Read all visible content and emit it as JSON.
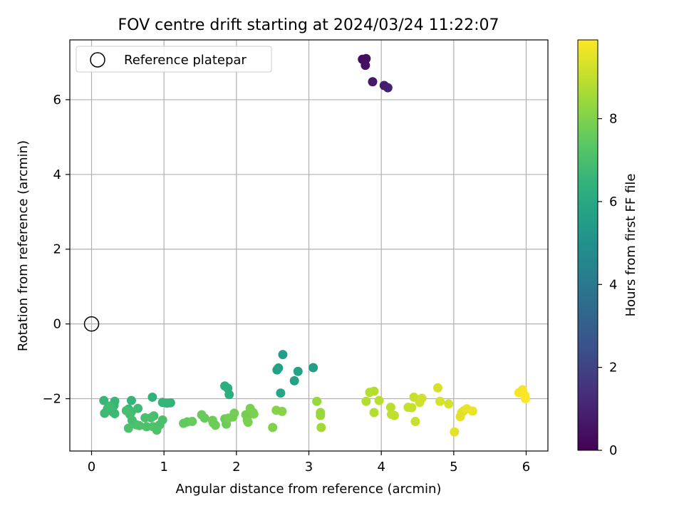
{
  "chart_data": {
    "type": "scatter",
    "title": "FOV centre drift starting at 2024/03/24 11:22:07",
    "xlabel": "Angular distance from reference (arcmin)",
    "ylabel": "Rotation from reference (arcmin)",
    "xlim": [
      -0.3,
      6.3
    ],
    "ylim": [
      -3.4,
      7.6
    ],
    "x_ticks": [
      0,
      1,
      2,
      3,
      4,
      5,
      6
    ],
    "y_ticks": [
      -2,
      0,
      2,
      4,
      6
    ],
    "grid": true,
    "legend": {
      "placement": "top-left",
      "label": "Reference platepar"
    },
    "reference_point": {
      "x": 0,
      "y": 0
    },
    "colorbar": {
      "label": "Hours from first FF file",
      "colormap": "viridis",
      "range": [
        0,
        9.9
      ],
      "ticks": [
        0,
        2,
        4,
        6,
        8
      ]
    },
    "points": [
      {
        "x": 3.74,
        "y": 7.08,
        "t": 0.3
      },
      {
        "x": 3.79,
        "y": 7.1,
        "t": 0.4
      },
      {
        "x": 3.78,
        "y": 6.92,
        "t": 0.5
      },
      {
        "x": 3.88,
        "y": 6.48,
        "t": 0.7
      },
      {
        "x": 4.04,
        "y": 6.38,
        "t": 0.8
      },
      {
        "x": 4.09,
        "y": 6.32,
        "t": 0.9
      },
      {
        "x": 2.64,
        "y": -0.82,
        "t": 5.6
      },
      {
        "x": 3.06,
        "y": -1.17,
        "t": 5.6
      },
      {
        "x": 2.58,
        "y": -1.18,
        "t": 5.6
      },
      {
        "x": 2.56,
        "y": -1.23,
        "t": 5.7
      },
      {
        "x": 2.85,
        "y": -1.27,
        "t": 5.7
      },
      {
        "x": 2.8,
        "y": -1.52,
        "t": 5.7
      },
      {
        "x": 2.61,
        "y": -1.85,
        "t": 5.9
      },
      {
        "x": 1.84,
        "y": -1.66,
        "t": 6.3
      },
      {
        "x": 1.88,
        "y": -1.72,
        "t": 6.3
      },
      {
        "x": 1.9,
        "y": -1.89,
        "t": 6.3
      },
      {
        "x": 0.84,
        "y": -1.96,
        "t": 6.4
      },
      {
        "x": 0.55,
        "y": -2.05,
        "t": 6.5
      },
      {
        "x": 0.98,
        "y": -2.1,
        "t": 6.5
      },
      {
        "x": 1.04,
        "y": -2.12,
        "t": 6.5
      },
      {
        "x": 1.09,
        "y": -2.11,
        "t": 6.5
      },
      {
        "x": 0.51,
        "y": -2.28,
        "t": 6.6
      },
      {
        "x": 0.17,
        "y": -2.05,
        "t": 6.6
      },
      {
        "x": 0.32,
        "y": -2.07,
        "t": 6.6
      },
      {
        "x": 0.31,
        "y": -2.18,
        "t": 6.6
      },
      {
        "x": 0.29,
        "y": -2.35,
        "t": 6.7
      },
      {
        "x": 0.32,
        "y": -2.4,
        "t": 6.7
      },
      {
        "x": 0.22,
        "y": -2.27,
        "t": 6.7
      },
      {
        "x": 0.18,
        "y": -2.39,
        "t": 6.7
      },
      {
        "x": 0.25,
        "y": -2.2,
        "t": 6.8
      },
      {
        "x": 0.55,
        "y": -2.35,
        "t": 6.8
      },
      {
        "x": 0.64,
        "y": -2.26,
        "t": 6.8
      },
      {
        "x": 0.53,
        "y": -2.42,
        "t": 6.9
      },
      {
        "x": 0.56,
        "y": -2.58,
        "t": 6.9
      },
      {
        "x": 0.48,
        "y": -2.32,
        "t": 6.9
      },
      {
        "x": 0.86,
        "y": -2.46,
        "t": 6.9
      },
      {
        "x": 0.82,
        "y": -2.51,
        "t": 7.0
      },
      {
        "x": 0.74,
        "y": -2.51,
        "t": 7.0
      },
      {
        "x": 0.98,
        "y": -2.57,
        "t": 7.0
      },
      {
        "x": 0.94,
        "y": -2.7,
        "t": 7.0
      },
      {
        "x": 0.62,
        "y": -2.7,
        "t": 7.0
      },
      {
        "x": 0.66,
        "y": -2.72,
        "t": 7.1
      },
      {
        "x": 0.76,
        "y": -2.75,
        "t": 7.1
      },
      {
        "x": 0.85,
        "y": -2.75,
        "t": 7.1
      },
      {
        "x": 0.9,
        "y": -2.84,
        "t": 7.1
      },
      {
        "x": 0.9,
        "y": -2.79,
        "t": 7.1
      },
      {
        "x": 0.51,
        "y": -2.79,
        "t": 7.1
      },
      {
        "x": 1.27,
        "y": -2.66,
        "t": 7.5
      },
      {
        "x": 1.32,
        "y": -2.62,
        "t": 7.5
      },
      {
        "x": 1.39,
        "y": -2.61,
        "t": 7.6
      },
      {
        "x": 1.52,
        "y": -2.43,
        "t": 7.6
      },
      {
        "x": 1.56,
        "y": -2.52,
        "t": 7.6
      },
      {
        "x": 1.67,
        "y": -2.58,
        "t": 7.7
      },
      {
        "x": 1.71,
        "y": -2.71,
        "t": 7.7
      },
      {
        "x": 1.68,
        "y": -2.65,
        "t": 7.7
      },
      {
        "x": 1.84,
        "y": -2.54,
        "t": 7.7
      },
      {
        "x": 1.86,
        "y": -2.68,
        "t": 7.7
      },
      {
        "x": 1.89,
        "y": -2.52,
        "t": 7.8
      },
      {
        "x": 1.95,
        "y": -2.49,
        "t": 7.8
      },
      {
        "x": 1.97,
        "y": -2.39,
        "t": 7.8
      },
      {
        "x": 2.13,
        "y": -2.43,
        "t": 7.8
      },
      {
        "x": 2.15,
        "y": -2.57,
        "t": 7.8
      },
      {
        "x": 2.16,
        "y": -2.63,
        "t": 7.9
      },
      {
        "x": 2.19,
        "y": -2.26,
        "t": 7.9
      },
      {
        "x": 2.23,
        "y": -2.37,
        "t": 7.9
      },
      {
        "x": 2.24,
        "y": -2.41,
        "t": 7.9
      },
      {
        "x": 2.5,
        "y": -2.77,
        "t": 8.0
      },
      {
        "x": 2.55,
        "y": -2.31,
        "t": 8.1
      },
      {
        "x": 2.63,
        "y": -2.34,
        "t": 8.1
      },
      {
        "x": 3.11,
        "y": -2.07,
        "t": 8.4
      },
      {
        "x": 3.16,
        "y": -2.37,
        "t": 8.4
      },
      {
        "x": 3.16,
        "y": -2.45,
        "t": 8.4
      },
      {
        "x": 3.17,
        "y": -2.77,
        "t": 8.5
      },
      {
        "x": 3.79,
        "y": -2.07,
        "t": 8.8
      },
      {
        "x": 3.84,
        "y": -1.83,
        "t": 8.8
      },
      {
        "x": 3.9,
        "y": -1.8,
        "t": 8.8
      },
      {
        "x": 3.9,
        "y": -2.37,
        "t": 8.8
      },
      {
        "x": 3.97,
        "y": -2.05,
        "t": 8.9
      },
      {
        "x": 4.13,
        "y": -2.23,
        "t": 8.9
      },
      {
        "x": 4.14,
        "y": -2.42,
        "t": 9.0
      },
      {
        "x": 4.18,
        "y": -2.45,
        "t": 9.0
      },
      {
        "x": 4.37,
        "y": -2.23,
        "t": 9.1
      },
      {
        "x": 4.42,
        "y": -2.24,
        "t": 9.1
      },
      {
        "x": 4.45,
        "y": -1.96,
        "t": 9.1
      },
      {
        "x": 4.47,
        "y": -2.61,
        "t": 9.1
      },
      {
        "x": 4.53,
        "y": -2.1,
        "t": 9.2
      },
      {
        "x": 4.56,
        "y": -1.99,
        "t": 9.2
      },
      {
        "x": 4.78,
        "y": -1.71,
        "t": 9.3
      },
      {
        "x": 4.81,
        "y": -2.07,
        "t": 9.3
      },
      {
        "x": 4.93,
        "y": -2.14,
        "t": 9.3
      },
      {
        "x": 5.01,
        "y": -2.89,
        "t": 9.5
      },
      {
        "x": 5.09,
        "y": -2.48,
        "t": 9.5
      },
      {
        "x": 5.11,
        "y": -2.37,
        "t": 9.5
      },
      {
        "x": 5.14,
        "y": -2.32,
        "t": 9.5
      },
      {
        "x": 5.18,
        "y": -2.27,
        "t": 9.6
      },
      {
        "x": 5.26,
        "y": -2.33,
        "t": 9.6
      },
      {
        "x": 5.9,
        "y": -1.84,
        "t": 9.8
      },
      {
        "x": 5.95,
        "y": -1.76,
        "t": 9.8
      },
      {
        "x": 5.98,
        "y": -1.91,
        "t": 9.9
      },
      {
        "x": 5.99,
        "y": -2.0,
        "t": 9.9
      }
    ]
  }
}
